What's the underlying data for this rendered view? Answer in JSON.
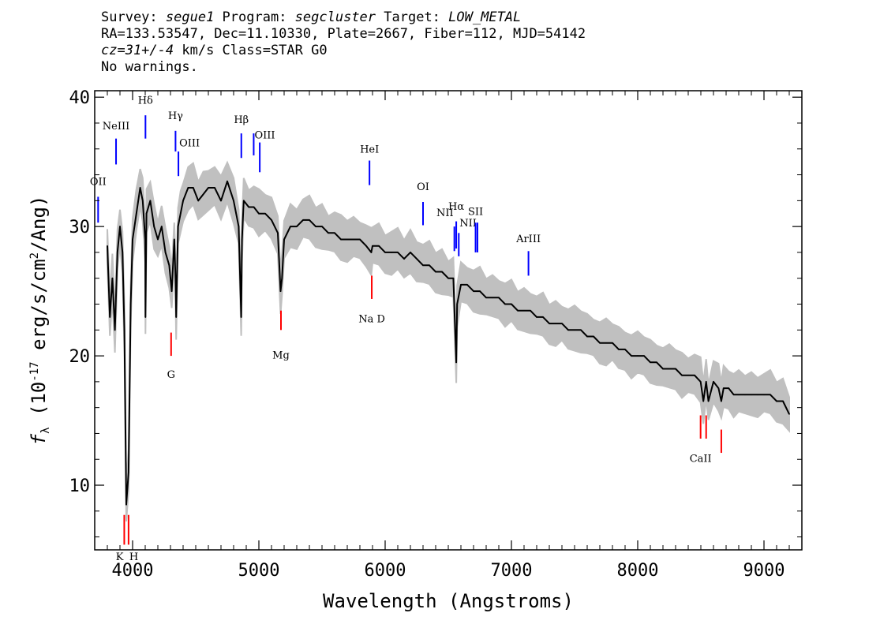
{
  "header": {
    "line1": {
      "survey_label": "Survey: ",
      "survey_value": "segue1",
      "program_label": " Program: ",
      "program_value": "segcluster",
      "target_label": " Target: ",
      "target_value": "LOW_METAL"
    },
    "line2": "RA=133.53547, Dec=11.10330, Plate=2667, Fiber=112, MJD=54142",
    "line3": {
      "cz_value": "cz=31+/-4",
      "rest": " km/s Class=STAR G0"
    },
    "line4": "No warnings."
  },
  "chart_data": {
    "type": "line",
    "xlabel": "Wavelength (Angstroms)",
    "ylabel_prefix": "f",
    "ylabel_sub": "λ",
    "ylabel_mid": " (10",
    "ylabel_exp": "-17",
    "ylabel_mid2": " erg/s/cm",
    "ylabel_exp2": "2",
    "ylabel_suffix": "/Ang)",
    "xlim": [
      3700,
      9300
    ],
    "ylim": [
      5,
      40.5
    ],
    "x_ticks": [
      4000,
      5000,
      6000,
      7000,
      8000,
      9000
    ],
    "y_ticks": [
      10,
      20,
      30,
      40
    ],
    "colors": {
      "flux": "#000000",
      "error_band": "#c0c0c0",
      "emission_lines": "#0000ff",
      "absorption_lines": "#ff0000"
    },
    "series": [
      {
        "x": [
          3800,
          3820,
          3840,
          3860,
          3880,
          3900,
          3920,
          3935,
          3950,
          3968,
          3985,
          4000,
          4030,
          4060,
          4080,
          4100,
          4102,
          4110,
          4140,
          4170,
          4200,
          4230,
          4260,
          4290,
          4310,
          4330,
          4340,
          4345,
          4360,
          4380,
          4400,
          4440,
          4480,
          4520,
          4560,
          4600,
          4650,
          4700,
          4750,
          4800,
          4840,
          4860,
          4861,
          4866,
          4880,
          4920,
          4960,
          5000,
          5050,
          5100,
          5150,
          5172,
          5183,
          5200,
          5250,
          5300,
          5350,
          5400,
          5450,
          5500,
          5550,
          5600,
          5650,
          5700,
          5750,
          5800,
          5850,
          5890,
          5900,
          5950,
          6000,
          6050,
          6100,
          6150,
          6200,
          6250,
          6300,
          6350,
          6400,
          6450,
          6500,
          6540,
          6563,
          6570,
          6600,
          6650,
          6700,
          6750,
          6800,
          6850,
          6900,
          6950,
          7000,
          7050,
          7100,
          7150,
          7200,
          7250,
          7300,
          7350,
          7400,
          7450,
          7500,
          7550,
          7600,
          7650,
          7700,
          7750,
          7800,
          7850,
          7900,
          7950,
          8000,
          8050,
          8100,
          8150,
          8200,
          8250,
          8300,
          8350,
          8400,
          8450,
          8498,
          8520,
          8542,
          8560,
          8600,
          8640,
          8662,
          8680,
          8720,
          8760,
          8800,
          8850,
          8900,
          8950,
          9000,
          9050,
          9100,
          9150,
          9200
        ],
        "y": [
          28.5,
          23,
          26,
          22,
          28,
          30,
          28,
          22,
          8.5,
          11,
          24,
          29,
          31,
          33,
          32,
          29,
          23,
          31,
          32,
          30,
          29,
          30,
          28,
          27,
          25,
          29,
          26,
          23,
          30,
          31,
          32,
          33,
          33,
          32,
          32.5,
          33,
          33,
          32,
          33.5,
          32,
          30,
          23,
          24,
          29,
          32,
          31.5,
          31.5,
          31,
          31,
          30.5,
          29.5,
          25,
          26,
          29,
          30,
          30,
          30.5,
          30.5,
          30,
          30,
          29.5,
          29.5,
          29,
          29,
          29,
          29,
          28.5,
          28,
          28.5,
          28.5,
          28,
          28,
          28,
          27.5,
          28,
          27.5,
          27,
          27,
          26.5,
          26.5,
          26,
          26,
          19.5,
          24,
          25.5,
          25.5,
          25,
          25,
          24.5,
          24.5,
          24.5,
          24,
          24,
          23.5,
          23.5,
          23.5,
          23,
          23,
          22.5,
          22.5,
          22.5,
          22,
          22,
          22,
          21.5,
          21.5,
          21,
          21,
          21,
          20.5,
          20.5,
          20,
          20,
          20,
          19.5,
          19.5,
          19,
          19,
          19,
          18.5,
          18.5,
          18.5,
          18,
          16.5,
          18,
          16.5,
          18,
          17.5,
          16.5,
          17.5,
          17.5,
          17,
          17,
          17,
          17,
          17,
          17,
          17,
          16.5,
          16.5,
          15.5
        ]
      }
    ],
    "spectral_lines": [
      {
        "label": "OII",
        "wavelength": 3727,
        "kind": "emission"
      },
      {
        "label": "NeIII",
        "wavelength": 3869,
        "kind": "emission"
      },
      {
        "label": "Hδ",
        "wavelength": 4102,
        "kind": "emission"
      },
      {
        "label": "Hγ",
        "wavelength": 4340,
        "kind": "emission"
      },
      {
        "label": "OIII",
        "wavelength": 4363,
        "kind": "emission"
      },
      {
        "label": "Hβ",
        "wavelength": 4861,
        "kind": "emission"
      },
      {
        "label": "OIII",
        "wavelength": 4959,
        "kind": "emission"
      },
      {
        "label": "",
        "wavelength": 5007,
        "kind": "emission"
      },
      {
        "label": "HeI",
        "wavelength": 5876,
        "kind": "emission"
      },
      {
        "label": "OI",
        "wavelength": 6300,
        "kind": "emission"
      },
      {
        "label": "NII",
        "wavelength": 6548,
        "kind": "emission"
      },
      {
        "label": "Hα",
        "wavelength": 6563,
        "kind": "emission"
      },
      {
        "label": "NII",
        "wavelength": 6583,
        "kind": "emission"
      },
      {
        "label": "SII",
        "wavelength": 6716,
        "kind": "emission"
      },
      {
        "label": "",
        "wavelength": 6731,
        "kind": "emission"
      },
      {
        "label": "ArIII",
        "wavelength": 7135,
        "kind": "emission"
      },
      {
        "label": "K",
        "wavelength": 3934,
        "kind": "absorption"
      },
      {
        "label": "H",
        "wavelength": 3968,
        "kind": "absorption"
      },
      {
        "label": "G",
        "wavelength": 4305,
        "kind": "absorption"
      },
      {
        "label": "Mg",
        "wavelength": 5175,
        "kind": "absorption"
      },
      {
        "label": "Na D",
        "wavelength": 5894,
        "kind": "absorption"
      },
      {
        "label": "CaII",
        "wavelength": 8498,
        "kind": "absorption"
      },
      {
        "label": "",
        "wavelength": 8542,
        "kind": "absorption"
      },
      {
        "label": "",
        "wavelength": 8662,
        "kind": "absorption"
      }
    ]
  }
}
